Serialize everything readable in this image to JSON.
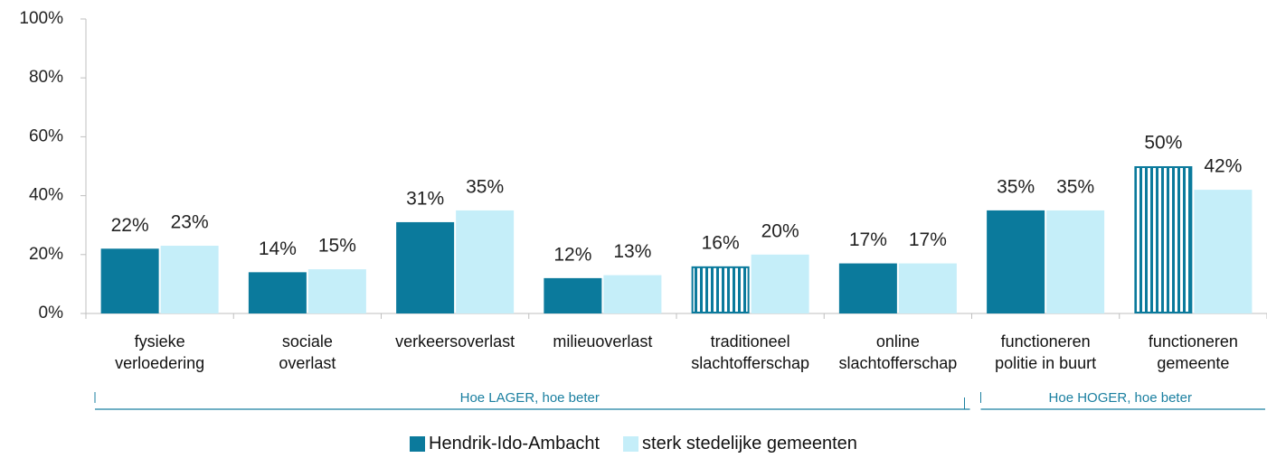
{
  "chart_data": {
    "type": "bar",
    "categories": [
      "fysieke\nverloedering",
      "sociale\noverlast",
      "verkeersoverlast",
      "milieuoverlast",
      "traditioneel\nslachtofferschap",
      "online\nslachtofferschap",
      "functioneren\npolitie in buurt",
      "functioneren\ngemeente"
    ],
    "series": [
      {
        "name": "Hendrik-Ido-Ambacht",
        "color": "#0b7a9c",
        "values": [
          22,
          14,
          31,
          12,
          16,
          17,
          35,
          50
        ],
        "value_labels": [
          "22%",
          "14%",
          "31%",
          "12%",
          "16%",
          "17%",
          "35%",
          "50%"
        ],
        "hatched": [
          false,
          false,
          false,
          false,
          true,
          false,
          false,
          true
        ]
      },
      {
        "name": "sterk stedelijke gemeenten",
        "color": "#c5eef9",
        "values": [
          23,
          15,
          35,
          13,
          20,
          17,
          35,
          42
        ],
        "value_labels": [
          "23%",
          "15%",
          "35%",
          "13%",
          "20%",
          "17%",
          "35%",
          "42%"
        ]
      }
    ],
    "ylim": [
      0,
      100
    ],
    "yticks": [
      {
        "value": 0,
        "label": "0%"
      },
      {
        "value": 20,
        "label": "20%"
      },
      {
        "value": 40,
        "label": "40%"
      },
      {
        "value": 60,
        "label": "60%"
      },
      {
        "value": 80,
        "label": "80%"
      },
      {
        "value": 100,
        "label": "100%"
      }
    ],
    "groups": [
      {
        "label": "Hoe LAGER, hoe beter",
        "from": 0,
        "to": 5
      },
      {
        "label": "Hoe HOGER, hoe beter",
        "from": 6,
        "to": 7
      }
    ],
    "legend": "bottom"
  }
}
